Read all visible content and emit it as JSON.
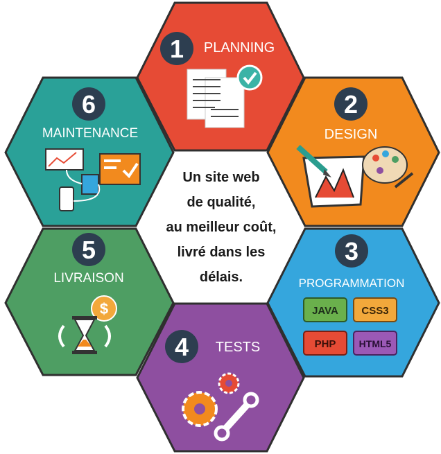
{
  "colors": {
    "planning": "#e64b35",
    "design": "#f28a1e",
    "programmation": "#35a6dd",
    "tests": "#8e4fa0",
    "livraison": "#4e9e63",
    "maintenance": "#2aa198",
    "border": "#2f2f2f",
    "number_circle": "#2d3e50"
  },
  "hexagons": [
    {
      "number": "1",
      "title": "PLANNING",
      "icon": "documents-check-icon"
    },
    {
      "number": "2",
      "title": "DESIGN",
      "icon": "palette-pencil-icon"
    },
    {
      "number": "3",
      "title": "PROGRAMMATION",
      "icon": "code-languages-icon",
      "badges": [
        "JAVA",
        "CSS3",
        "PHP",
        "HTML5"
      ]
    },
    {
      "number": "4",
      "title": "TESTS",
      "icon": "gears-wrench-icon"
    },
    {
      "number": "5",
      "title": "LIVRAISON",
      "icon": "hourglass-dollar-icon"
    },
    {
      "number": "6",
      "title": "MAINTENANCE",
      "icon": "devices-dashboard-icon"
    }
  ],
  "center": {
    "lines": [
      "Un site web",
      "de qualité,",
      "au meilleur coût,",
      "livré dans les",
      "délais."
    ]
  }
}
